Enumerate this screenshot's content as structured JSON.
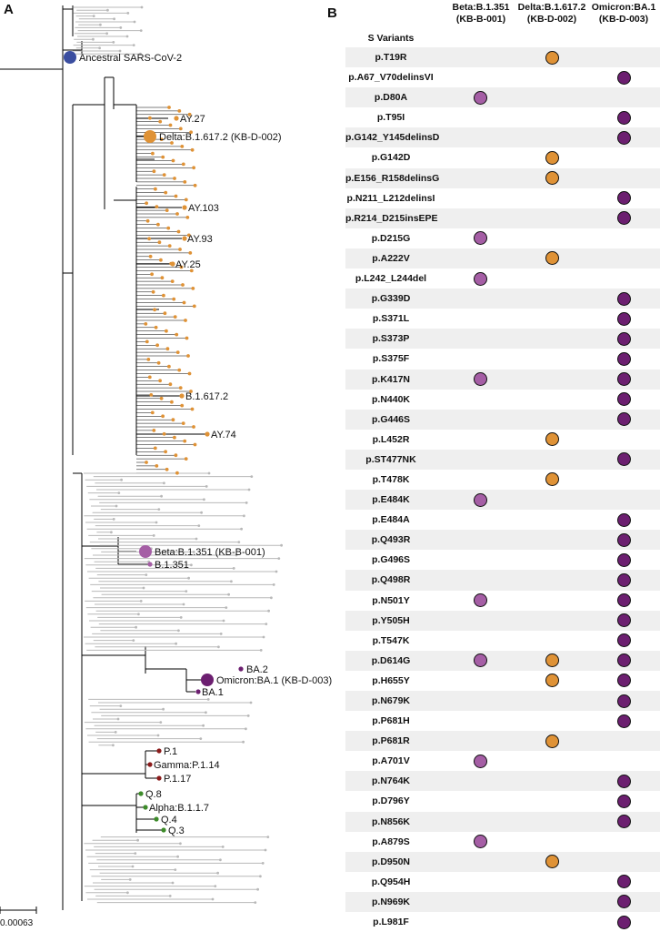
{
  "panel_a_label": "A",
  "panel_b_label": "B",
  "scale_bar_label": "0.00063",
  "tree": {
    "ancestral": "Ancestral SARS-CoV-2",
    "delta_ref": "Delta:B.1.617.2 (KB-D-002)",
    "beta_ref": "Beta:B.1.351 (KB-B-001)",
    "omicron_ref": "Omicron:BA.1 (KB-D-003)",
    "lineages": {
      "ay27": "AY.27",
      "ay103": "AY.103",
      "ay93": "AY.93",
      "ay25": "AY.25",
      "b16172": "B.1.617.2",
      "ay74": "AY.74",
      "b1351": "B.1.351",
      "ba2": "BA.2",
      "ba1": "BA.1",
      "p1": "P.1",
      "gamma": "Gamma:P.1.14",
      "p117": "P.1.17",
      "q8": "Q.8",
      "alpha": "Alpha:B.1.1.7",
      "q4": "Q.4",
      "q3": "Q.3"
    }
  },
  "colors": {
    "ancestral": "#3b4ea0",
    "delta": "#df9236",
    "beta": "#a55ea5",
    "omicron": "#6c1f70",
    "gamma": "#8b1a1a",
    "alpha": "#3d8b2a",
    "grey": "#b0b0b0"
  },
  "matrix": {
    "variant_header": "S Variants",
    "columns": [
      {
        "key": "beta",
        "line1": "Beta:B.1.351",
        "line2": "(KB-B-001)"
      },
      {
        "key": "delta",
        "line1": "Delta:B.1.617.2",
        "line2": "(KB-D-002)"
      },
      {
        "key": "omi",
        "line1": "Omicron:BA.1",
        "line2": "(KB-D-003)"
      }
    ],
    "rows": [
      {
        "variant": "p.T19R",
        "beta": false,
        "delta": true,
        "omi": false
      },
      {
        "variant": "p.A67_V70delinsVI",
        "beta": false,
        "delta": false,
        "omi": true
      },
      {
        "variant": "p.D80A",
        "beta": true,
        "delta": false,
        "omi": false
      },
      {
        "variant": "p.T95I",
        "beta": false,
        "delta": false,
        "omi": true
      },
      {
        "variant": "p.G142_Y145delinsD",
        "beta": false,
        "delta": false,
        "omi": true
      },
      {
        "variant": "p.G142D",
        "beta": false,
        "delta": true,
        "omi": false
      },
      {
        "variant": "p.E156_R158delinsG",
        "beta": false,
        "delta": true,
        "omi": false
      },
      {
        "variant": "p.N211_L212delinsI",
        "beta": false,
        "delta": false,
        "omi": true
      },
      {
        "variant": "p.R214_D215insEPE",
        "beta": false,
        "delta": false,
        "omi": true
      },
      {
        "variant": "p.D215G",
        "beta": true,
        "delta": false,
        "omi": false
      },
      {
        "variant": "p.A222V",
        "beta": false,
        "delta": true,
        "omi": false
      },
      {
        "variant": "p.L242_L244del",
        "beta": true,
        "delta": false,
        "omi": false
      },
      {
        "variant": "p.G339D",
        "beta": false,
        "delta": false,
        "omi": true
      },
      {
        "variant": "p.S371L",
        "beta": false,
        "delta": false,
        "omi": true
      },
      {
        "variant": "p.S373P",
        "beta": false,
        "delta": false,
        "omi": true
      },
      {
        "variant": "p.S375F",
        "beta": false,
        "delta": false,
        "omi": true
      },
      {
        "variant": "p.K417N",
        "beta": true,
        "delta": false,
        "omi": true
      },
      {
        "variant": "p.N440K",
        "beta": false,
        "delta": false,
        "omi": true
      },
      {
        "variant": "p.G446S",
        "beta": false,
        "delta": false,
        "omi": true
      },
      {
        "variant": "p.L452R",
        "beta": false,
        "delta": true,
        "omi": false
      },
      {
        "variant": "p.ST477NK",
        "beta": false,
        "delta": false,
        "omi": true
      },
      {
        "variant": "p.T478K",
        "beta": false,
        "delta": true,
        "omi": false
      },
      {
        "variant": "p.E484K",
        "beta": true,
        "delta": false,
        "omi": false
      },
      {
        "variant": "p.E484A",
        "beta": false,
        "delta": false,
        "omi": true
      },
      {
        "variant": "p.Q493R",
        "beta": false,
        "delta": false,
        "omi": true
      },
      {
        "variant": "p.G496S",
        "beta": false,
        "delta": false,
        "omi": true
      },
      {
        "variant": "p.Q498R",
        "beta": false,
        "delta": false,
        "omi": true
      },
      {
        "variant": "p.N501Y",
        "beta": true,
        "delta": false,
        "omi": true
      },
      {
        "variant": "p.Y505H",
        "beta": false,
        "delta": false,
        "omi": true
      },
      {
        "variant": "p.T547K",
        "beta": false,
        "delta": false,
        "omi": true
      },
      {
        "variant": "p.D614G",
        "beta": true,
        "delta": true,
        "omi": true
      },
      {
        "variant": "p.H655Y",
        "beta": false,
        "delta": true,
        "omi": true
      },
      {
        "variant": "p.N679K",
        "beta": false,
        "delta": false,
        "omi": true
      },
      {
        "variant": "p.P681H",
        "beta": false,
        "delta": false,
        "omi": true
      },
      {
        "variant": "p.P681R",
        "beta": false,
        "delta": true,
        "omi": false
      },
      {
        "variant": "p.A701V",
        "beta": true,
        "delta": false,
        "omi": false
      },
      {
        "variant": "p.N764K",
        "beta": false,
        "delta": false,
        "omi": true
      },
      {
        "variant": "p.D796Y",
        "beta": false,
        "delta": false,
        "omi": true
      },
      {
        "variant": "p.N856K",
        "beta": false,
        "delta": false,
        "omi": true
      },
      {
        "variant": "p.A879S",
        "beta": true,
        "delta": false,
        "omi": false
      },
      {
        "variant": "p.D950N",
        "beta": false,
        "delta": true,
        "omi": false
      },
      {
        "variant": "p.Q954H",
        "beta": false,
        "delta": false,
        "omi": true
      },
      {
        "variant": "p.N969K",
        "beta": false,
        "delta": false,
        "omi": true
      },
      {
        "variant": "p.L981F",
        "beta": false,
        "delta": false,
        "omi": true
      }
    ]
  }
}
